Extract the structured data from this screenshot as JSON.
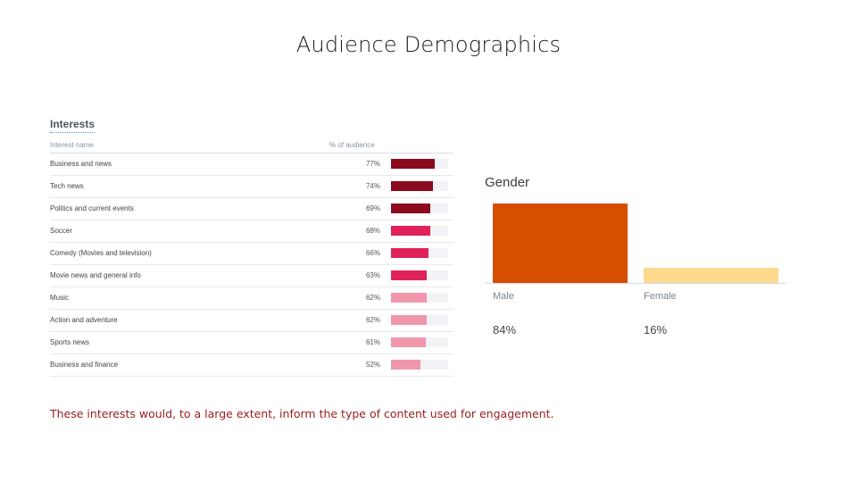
{
  "slide": {
    "title": "Audience Demographics",
    "caption": "These interests would, to a large extent, inform the type of content used for engagement."
  },
  "interests": {
    "heading": "Interests",
    "col_name": "Interest name",
    "col_pct": "% of audience",
    "colors": {
      "dark": "#8b0a1e",
      "mid": "#e0215a",
      "light": "#f097ad",
      "track": "#f1f3f6"
    },
    "rows": [
      {
        "name": "Business and news",
        "pct_label": "77%",
        "value": 77,
        "tone": "dark"
      },
      {
        "name": "Tech news",
        "pct_label": "74%",
        "value": 74,
        "tone": "dark"
      },
      {
        "name": "Politics and current events",
        "pct_label": "69%",
        "value": 69,
        "tone": "dark"
      },
      {
        "name": "Soccer",
        "pct_label": "68%",
        "value": 68,
        "tone": "mid"
      },
      {
        "name": "Comedy (Movies and television)",
        "pct_label": "66%",
        "value": 66,
        "tone": "mid"
      },
      {
        "name": "Movie news and general info",
        "pct_label": "63%",
        "value": 63,
        "tone": "mid"
      },
      {
        "name": "Music",
        "pct_label": "62%",
        "value": 62,
        "tone": "light"
      },
      {
        "name": "Action and adventure",
        "pct_label": "62%",
        "value": 62,
        "tone": "light"
      },
      {
        "name": "Sports news",
        "pct_label": "61%",
        "value": 61,
        "tone": "light"
      },
      {
        "name": "Business and finance",
        "pct_label": "52%",
        "value": 52,
        "tone": "light"
      }
    ]
  },
  "chart_data": [
    {
      "type": "bar",
      "orientation": "horizontal",
      "title": "Interests",
      "xlabel": "% of audience",
      "ylabel": "Interest name",
      "categories": [
        "Business and news",
        "Tech news",
        "Politics and current events",
        "Soccer",
        "Comedy (Movies and television)",
        "Movie news and general info",
        "Music",
        "Action and adventure",
        "Sports news",
        "Business and finance"
      ],
      "values": [
        77,
        74,
        69,
        68,
        66,
        63,
        62,
        62,
        61,
        52
      ],
      "xlim": [
        0,
        100
      ],
      "grid": false
    },
    {
      "type": "bar",
      "title": "Gender",
      "categories": [
        "Male",
        "Female"
      ],
      "values": [
        84,
        16
      ],
      "value_labels": [
        "84%",
        "16%"
      ],
      "colors": [
        "#d64f00",
        "#fdd98e"
      ],
      "ylim": [
        0,
        84
      ],
      "grid": false
    }
  ]
}
